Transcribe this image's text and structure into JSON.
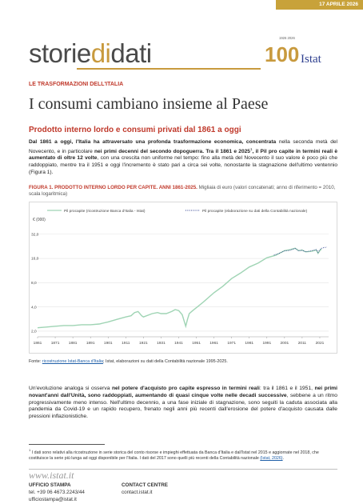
{
  "header": {
    "date": "17 APRILE 2026",
    "logo_part1": "storie",
    "logo_part2": "di",
    "logo_part3": "dati",
    "badge_years": "1926 2026",
    "badge_number": "100",
    "badge_brand": "Istat"
  },
  "article": {
    "kicker": "LE TRASFORMAZIONI DELL'ITALIA",
    "title": "I consumi cambiano insieme al Paese",
    "subtitle": "Prodotto interno lordo e consumi privati dal 1861 a oggi",
    "intro_bold1": "Dal 1861 a oggi, l'Italia ha attraversato una profonda trasformazione economica, concentrata",
    "intro_text1": " nella seconda metà del Novecento, e in particolare ",
    "intro_bold2": "nei primi decenni del secondo dopoguerra. Tra il 1861 e 2025",
    "intro_sup": "1",
    "intro_bold3": ", il Pil pro capite in termini reali è aumentato di oltre 12 volte",
    "intro_text2": ", con una crescita non uniforme nel tempo: fino alla metà del Novecento il suo valore è poco più che raddoppiato, mentre tra il 1951 e oggi l'incremento è stato pari a circa sei volte, nonostante la stagnazione dell'ultimo ventennio (Figura 1).",
    "figure_title": "FIGURA 1. PRODOTTO INTERNO LORDO PER CAPITE. ANNI 1861-2025.",
    "figure_note": " Migliaia di euro (valori concatenati; anno di riferimento = 2010, scala logaritmica)",
    "source_label": "Fonte: ",
    "source_link": "ricostruzione Istat-Banca d'Italia",
    "source_text": "; Istat, elaborazioni su dati della Contabilità nazionale 1995-2025.",
    "body2_text1": "Un'evoluzione analoga si osserva ",
    "body2_bold1": "nel potere d'acquisto pro capite espresso in termini reali",
    "body2_text2": ": tra il 1861 e il 1951, ",
    "body2_bold2": "nei primi novant'anni dall'Unità, sono raddoppiati, aumentando di quasi cinque volte nelle decadi successive",
    "body2_text3": ", sebbene a un ritmo progressivamente meno intenso. Nell'ultimo decennio, a una fase iniziale di stagnazione, sono seguiti la caduta associata alla pandemia da Covid-19 e un rapido recupero, frenato negli anni più recenti dall'erosione del potere d'acquisto causata dalle pressioni inflazionistiche.",
    "footnote_sup": "1",
    "footnote_text": " I dati sono relativi alla ricostruzione in serie storica del conto risorse e impieghi effettuata da Banca d'Italia e dall'Istat nel 2015 e aggiornate nel 2018, che costituisce la serie più lunga ad oggi disponibile per l'Italia. I dati del 2017 sono quelli più recenti della Contabilità nazionale ",
    "footnote_link": "(Istat, 2026)",
    "footnote_end": "."
  },
  "footer": {
    "website": "www.istat.it",
    "press_title": "UFFICIO STAMPA",
    "press_tel": "tel. +39 06 4673.2243/44",
    "press_mail": "ufficiostampa@istat.it",
    "contact_title": "CONTACT CENTRE",
    "contact_mail": "contact.istat.it"
  },
  "chart_data": {
    "type": "line",
    "title": "PRODOTTO INTERNO LORDO PER CAPITE. ANNI 1861-2025.",
    "ylabel": "€ (000)",
    "y_scale": "log",
    "ylim": [
      1.7,
      40
    ],
    "yticks": [
      2.0,
      4.0,
      8.0,
      16.0,
      32.0
    ],
    "ytick_labels": [
      "2,0",
      "4,0",
      "8,0",
      "16,0",
      "32,0"
    ],
    "xlim": [
      1861,
      2026
    ],
    "xticks": [
      1861,
      1871,
      1881,
      1891,
      1901,
      1911,
      1921,
      1931,
      1941,
      1951,
      1961,
      1971,
      1981,
      1991,
      2001,
      2011,
      2021
    ],
    "grid": "horizontal",
    "legend_position": "top",
    "colors": {
      "series1": "#9fd4b4",
      "series2": "#2e3f8f"
    },
    "series": [
      {
        "name": "Pil procapite (ricostruzione Banca d'Italia - Istat)",
        "style": "solid",
        "points": [
          [
            1861,
            2.2
          ],
          [
            1866,
            2.25
          ],
          [
            1871,
            2.3
          ],
          [
            1876,
            2.35
          ],
          [
            1881,
            2.35
          ],
          [
            1886,
            2.4
          ],
          [
            1891,
            2.4
          ],
          [
            1896,
            2.45
          ],
          [
            1901,
            2.6
          ],
          [
            1906,
            2.8
          ],
          [
            1911,
            3.0
          ],
          [
            1914,
            3.1
          ],
          [
            1916,
            3.4
          ],
          [
            1918,
            3.5
          ],
          [
            1920,
            3.1
          ],
          [
            1921,
            3.0
          ],
          [
            1926,
            3.3
          ],
          [
            1929,
            3.4
          ],
          [
            1931,
            3.3
          ],
          [
            1934,
            3.3
          ],
          [
            1937,
            3.5
          ],
          [
            1939,
            3.7
          ],
          [
            1941,
            3.6
          ],
          [
            1943,
            3.2
          ],
          [
            1945,
            2.3
          ],
          [
            1946,
            2.8
          ],
          [
            1947,
            3.3
          ],
          [
            1949,
            3.6
          ],
          [
            1951,
            3.9
          ],
          [
            1955,
            4.6
          ],
          [
            1961,
            6.0
          ],
          [
            1966,
            7.2
          ],
          [
            1971,
            9.0
          ],
          [
            1976,
            10.5
          ],
          [
            1981,
            12.5
          ],
          [
            1986,
            14.0
          ],
          [
            1991,
            16.3
          ],
          [
            1996,
            17.5
          ],
          [
            2001,
            20.0
          ],
          [
            2004,
            20.5
          ],
          [
            2007,
            21.4
          ],
          [
            2009,
            20.0
          ],
          [
            2011,
            20.3
          ],
          [
            2013,
            19.3
          ],
          [
            2016,
            19.6
          ],
          [
            2019,
            20.3
          ],
          [
            2020,
            18.5
          ],
          [
            2021,
            20.0
          ],
          [
            2022,
            21.0
          ]
        ]
      },
      {
        "name": "Pil procapite (elaborazione su dati della Contabilità nazionale)",
        "style": "dotted",
        "points": [
          [
            1995,
            17.6
          ],
          [
            1998,
            18.5
          ],
          [
            2001,
            19.8
          ],
          [
            2004,
            20.2
          ],
          [
            2007,
            21.3
          ],
          [
            2009,
            19.9
          ],
          [
            2011,
            20.2
          ],
          [
            2013,
            19.3
          ],
          [
            2016,
            19.8
          ],
          [
            2019,
            20.6
          ],
          [
            2020,
            19.0
          ],
          [
            2021,
            20.5
          ],
          [
            2022,
            21.4
          ],
          [
            2023,
            21.7
          ],
          [
            2025,
            22.1
          ]
        ]
      }
    ]
  }
}
